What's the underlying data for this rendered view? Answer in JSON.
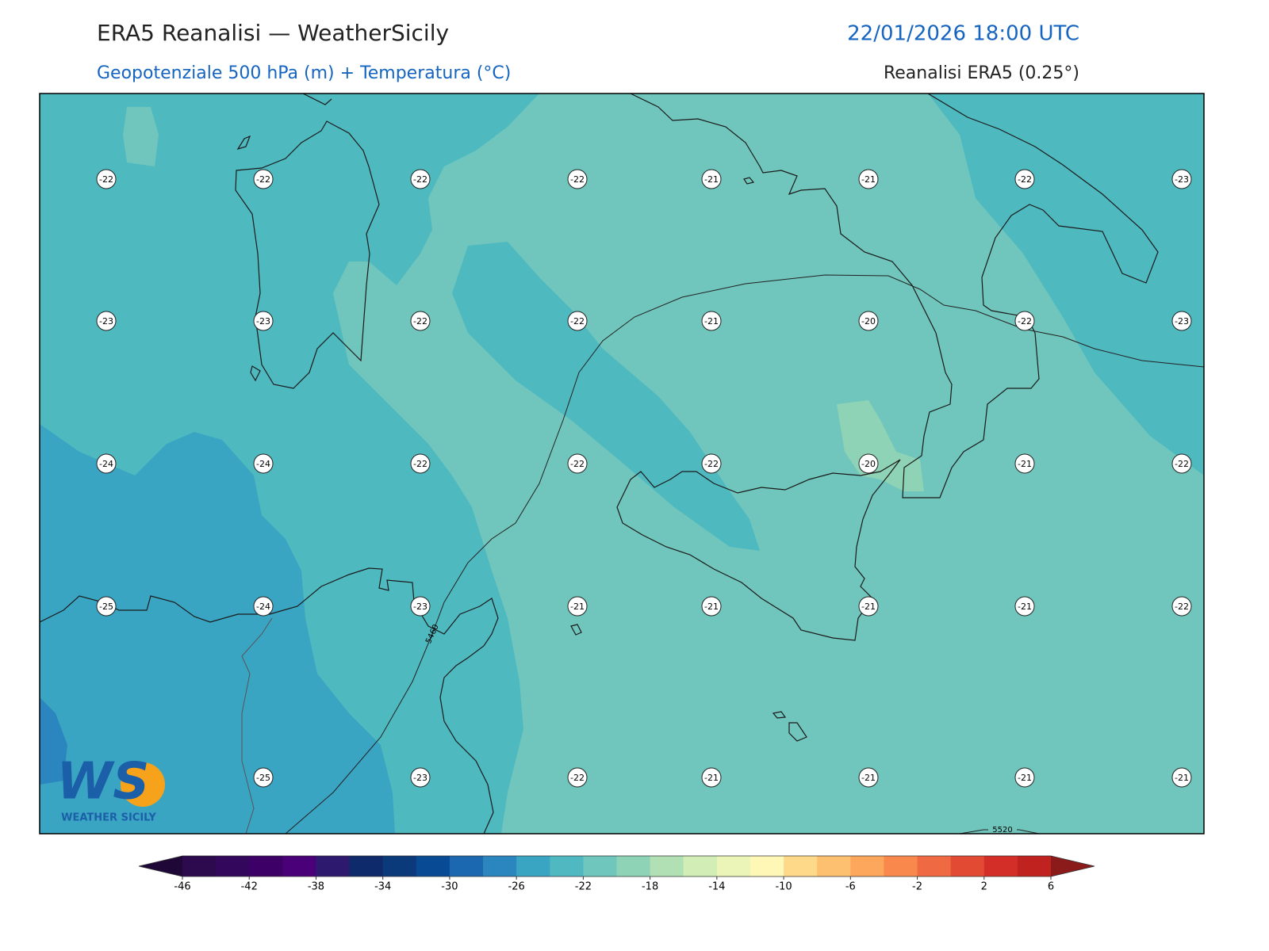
{
  "header": {
    "title": "ERA5 Reanalisi — WeatherSicily",
    "datetime": "22/01/2026 18:00 UTC",
    "subtitle": "Geopotenziale 500 hPa (m) + Temperatura (°C)",
    "source": "Reanalisi ERA5 (0.25°)"
  },
  "map": {
    "temperature_grid": [
      [
        -22,
        -22,
        -22,
        -22,
        -21,
        -21,
        -22,
        -23
      ],
      [
        -23,
        -23,
        -22,
        -22,
        -21,
        -20,
        -22,
        -23
      ],
      [
        -24,
        -24,
        -22,
        -22,
        -22,
        -20,
        -21,
        -22
      ],
      [
        -25,
        -24,
        -23,
        -21,
        -21,
        -21,
        -21,
        -22
      ],
      [
        null,
        -25,
        -23,
        -22,
        -21,
        -21,
        -21,
        -21
      ]
    ],
    "contour_labels": [
      "5460",
      "5520"
    ]
  },
  "colorbar": {
    "ticks": [
      -46,
      -42,
      -38,
      -34,
      -30,
      -26,
      -22,
      -18,
      -14,
      -10,
      -6,
      -2,
      2,
      6
    ],
    "colors": [
      "#2d0a4e",
      "#33085c",
      "#3d0066",
      "#4a0078",
      "#2d1a6e",
      "#0f2a6b",
      "#0a3a7a",
      "#084b94",
      "#1c68b0",
      "#2b85be",
      "#3aa5c3",
      "#4fb8c0",
      "#6fc6bc",
      "#8fd3b7",
      "#b2e0b5",
      "#d2edb5",
      "#ebf5b8",
      "#fef7b5",
      "#fed98a",
      "#fdbf70",
      "#fca75c",
      "#f8884c",
      "#ef6a42",
      "#e34a33",
      "#d42e28",
      "#c0231f"
    ],
    "under_color": "#1f0838",
    "over_color": "#8b1a1a"
  },
  "logo": {
    "mark": "WS",
    "name": "WEATHER SICILY"
  }
}
